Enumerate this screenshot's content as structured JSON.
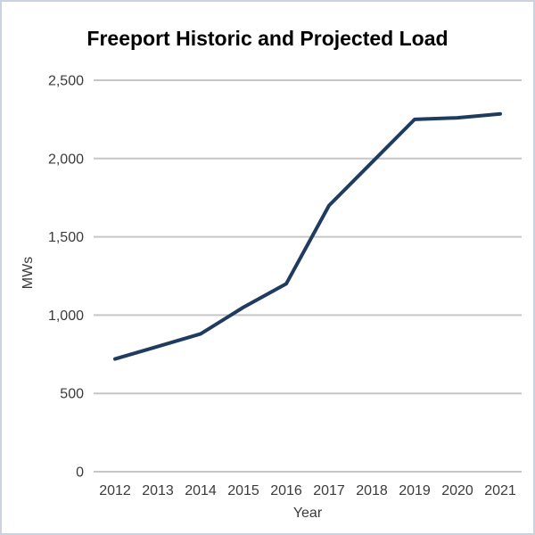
{
  "window": {
    "background_color": "#ffffff",
    "border_color": "#ccd3e0"
  },
  "chart_data": {
    "type": "line",
    "title": "Freeport Historic and Projected Load",
    "xlabel": "Year",
    "ylabel": "MWs",
    "categories": [
      "2012",
      "2013",
      "2014",
      "2015",
      "2016",
      "2017",
      "2018",
      "2019",
      "2020",
      "2021"
    ],
    "values": [
      720,
      800,
      880,
      1050,
      1200,
      1700,
      1975,
      2250,
      2260,
      2285
    ],
    "ylim": [
      0,
      2500
    ],
    "yticks": [
      0,
      500,
      1000,
      1500,
      2000,
      2500
    ],
    "ytick_labels": [
      "0",
      "500",
      "1,000",
      "1,500",
      "2,000",
      "2,500"
    ],
    "grid": "horizontal",
    "legend": "none",
    "line_color": "#1f3b5f",
    "gridline_color": "#c6c6c6",
    "text_color": "#3b3b3b",
    "title_color": "#000000"
  }
}
